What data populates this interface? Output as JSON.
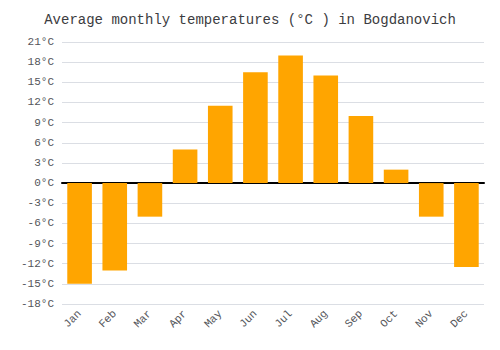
{
  "chart_data": {
    "type": "bar",
    "title": "Average monthly temperatures (°C ) in Bogdanovich",
    "categories": [
      "Jan",
      "Feb",
      "Mar",
      "Apr",
      "May",
      "Jun",
      "Jul",
      "Aug",
      "Sep",
      "Oct",
      "Nov",
      "Dec"
    ],
    "values": [
      -15,
      -13,
      -5,
      5,
      11.5,
      16.5,
      19,
      16,
      10,
      2,
      -5,
      -12.5
    ],
    "color": "#FFA500",
    "ylim": [
      -18,
      21
    ],
    "yticks": [
      {
        "value": -18,
        "label": "-18°C"
      },
      {
        "value": -15,
        "label": "-15°C"
      },
      {
        "value": -12,
        "label": "-12°C"
      },
      {
        "value": -9,
        "label": "-9°C"
      },
      {
        "value": -6,
        "label": "-6°C"
      },
      {
        "value": -3,
        "label": "-3°C"
      },
      {
        "value": 0,
        "label": "0°C"
      },
      {
        "value": 3,
        "label": "3°C"
      },
      {
        "value": 6,
        "label": "6°C"
      },
      {
        "value": 9,
        "label": "9°C"
      },
      {
        "value": 12,
        "label": "12°C"
      },
      {
        "value": 15,
        "label": "15°C"
      },
      {
        "value": 18,
        "label": "18°C"
      },
      {
        "value": 21,
        "label": "21°C"
      }
    ],
    "grid": true
  }
}
